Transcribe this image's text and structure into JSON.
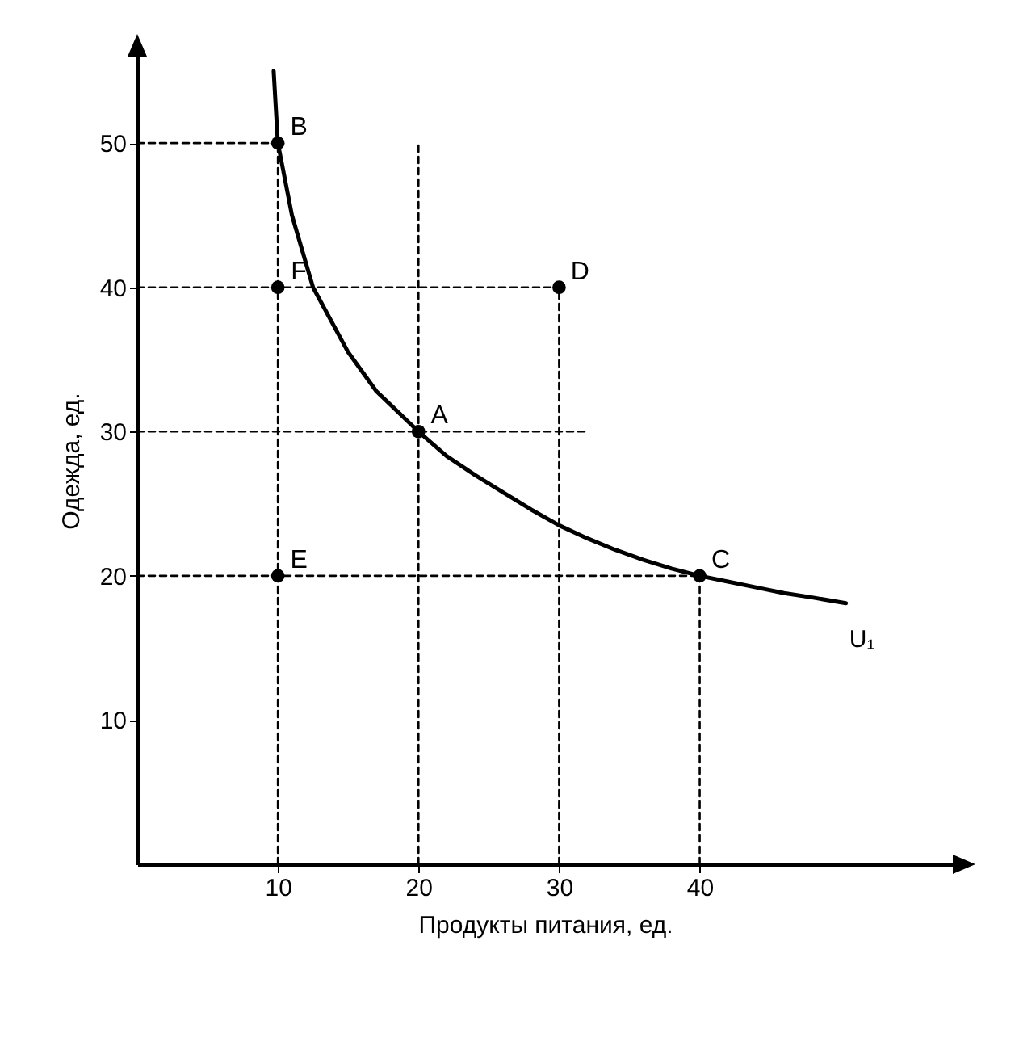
{
  "chart_data": {
    "type": "line",
    "xlabel": "Продукты питания, ед.",
    "ylabel": "Одежда, ед.",
    "xlim": [
      0,
      58
    ],
    "ylim": [
      0,
      56
    ],
    "xticks": [
      10,
      20,
      30,
      40
    ],
    "yticks": [
      10,
      20,
      30,
      40,
      50
    ],
    "series": [
      {
        "type": "line",
        "line_style": "dashed",
        "color": "#000000",
        "x": [
          0,
          10
        ],
        "values": [
          50,
          50
        ]
      },
      {
        "type": "line",
        "line_style": "dashed",
        "color": "#000000",
        "x": [
          0,
          30
        ],
        "values": [
          40,
          40
        ]
      },
      {
        "type": "line",
        "line_style": "dashed",
        "color": "#000000",
        "x": [
          0,
          32
        ],
        "values": [
          30,
          30
        ]
      },
      {
        "type": "line",
        "line_style": "dashed",
        "color": "#000000",
        "x": [
          0,
          40
        ],
        "values": [
          20,
          20
        ]
      },
      {
        "type": "line",
        "line_style": "dashed",
        "color": "#000000",
        "x": [
          10,
          10
        ],
        "values": [
          0,
          50
        ]
      },
      {
        "type": "line",
        "line_style": "dashed",
        "color": "#000000",
        "x": [
          20,
          20
        ],
        "values": [
          0,
          50
        ]
      },
      {
        "type": "line",
        "line_style": "dashed",
        "color": "#000000",
        "x": [
          30,
          30
        ],
        "values": [
          0,
          40
        ]
      },
      {
        "type": "line",
        "line_style": "dashed",
        "color": "#000000",
        "x": [
          40,
          40
        ],
        "values": [
          0,
          20
        ]
      },
      {
        "type": "line",
        "name": "U₁",
        "line_style": "solid",
        "color": "#000000",
        "x": [
          9.7,
          10,
          11,
          12.5,
          15,
          17,
          20,
          22,
          24,
          26,
          28,
          30,
          32,
          34,
          36,
          38,
          40,
          42,
          44,
          46,
          48,
          50.4
        ],
        "values": [
          55,
          50,
          45,
          40,
          35.5,
          32.8,
          30,
          28.3,
          27,
          25.8,
          24.6,
          23.5,
          22.6,
          21.8,
          21.1,
          20.5,
          20,
          19.6,
          19.2,
          18.8,
          18.5,
          18.1
        ]
      },
      {
        "type": "scatter",
        "marker": "circle",
        "color": "#000000",
        "x": [
          10,
          10,
          30,
          20,
          10,
          40
        ],
        "values": [
          50,
          40,
          40,
          30,
          20,
          20
        ]
      }
    ],
    "annotations": [
      {
        "text": "B",
        "x": 10,
        "y": 50
      },
      {
        "text": "F",
        "x": 10,
        "y": 40
      },
      {
        "text": "D",
        "x": 30,
        "y": 40
      },
      {
        "text": "A",
        "x": 20,
        "y": 30
      },
      {
        "text": "E",
        "x": 10,
        "y": 20
      },
      {
        "text": "C",
        "x": 40,
        "y": 20
      }
    ]
  }
}
